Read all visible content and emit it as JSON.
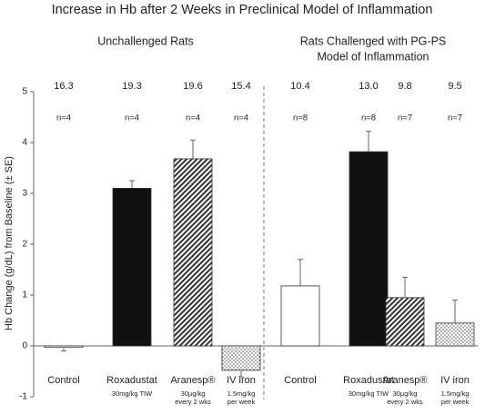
{
  "chart_data": {
    "type": "bar",
    "title": "Increase in Hb after 2 Weeks in Preclinical Model of Inflammation",
    "groups": [
      {
        "label_lines": [
          "Unchallenged Rats"
        ]
      },
      {
        "label_lines": [
          "Rats Challenged with PG-PS",
          "Model of Inflammation"
        ]
      }
    ],
    "y_label": "Hb Change (g/dL) from Baseline (± SE)",
    "categories": [
      "Control",
      "Roxadustat",
      "Aranesp®",
      "IV iron",
      "Control",
      "Roxadustat",
      "Aranesp®",
      "IV iron"
    ],
    "sub_labels": [
      null,
      [
        "30mg/kg TIW"
      ],
      [
        "30µg/kg",
        "every 2 wks"
      ],
      [
        "1.5mg/kg",
        "per week"
      ],
      null,
      [
        "30mg/kg TIW"
      ],
      [
        "30µg/kg",
        "every 2 wks"
      ],
      [
        "1.5mg/kg",
        "per week"
      ]
    ],
    "values": [
      -0.03,
      3.1,
      3.68,
      -0.48,
      1.18,
      3.82,
      0.95,
      0.45
    ],
    "errors": [
      0.07,
      0.15,
      0.37,
      0.13,
      0.52,
      0.4,
      0.4,
      0.45
    ],
    "top_values": {
      "values": [
        16.3,
        19.3,
        19.6,
        15.4,
        10.4,
        13.0,
        9.8,
        9.5
      ],
      "value_labels": [
        "16.3",
        "19.3",
        "19.6",
        "15.4",
        "10.4",
        "13.0",
        "9.8",
        "9.5"
      ]
    },
    "n_labels": [
      "n=4",
      "n=4",
      "n=4",
      "n=4",
      "n=8",
      "n=8",
      "n=7",
      "n=7"
    ],
    "patterns": [
      "white",
      "black",
      "hatch",
      "dots",
      "white",
      "black",
      "hatch",
      "dots"
    ],
    "ylim": [
      -1,
      5
    ],
    "yticks": [
      -1,
      0,
      1,
      2,
      3,
      4,
      5
    ]
  }
}
